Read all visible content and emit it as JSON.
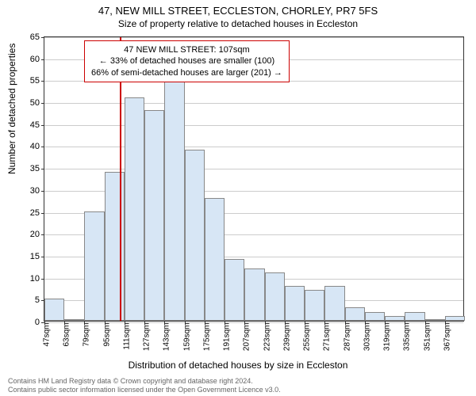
{
  "title_main": "47, NEW MILL STREET, ECCLESTON, CHORLEY, PR7 5FS",
  "title_sub": "Size of property relative to detached houses in Eccleston",
  "y_axis_title": "Number of detached properties",
  "x_axis_title": "Distribution of detached houses by size in Eccleston",
  "chart": {
    "type": "histogram",
    "ylim": [
      0,
      65
    ],
    "ytick_step": 5,
    "x_start": 47,
    "x_step": 16,
    "x_unit": "sqm",
    "bar_color": "#d7e6f5",
    "bar_border": "#888888",
    "grid_color": "#cccccc",
    "axis_color": "#333333",
    "background": "#ffffff",
    "ref_line_value": 107,
    "ref_line_color": "#cc0000",
    "categories": [
      "47sqm",
      "63sqm",
      "79sqm",
      "95sqm",
      "111sqm",
      "127sqm",
      "143sqm",
      "159sqm",
      "175sqm",
      "191sqm",
      "207sqm",
      "223sqm",
      "239sqm",
      "255sqm",
      "271sqm",
      "287sqm",
      "303sqm",
      "319sqm",
      "335sqm",
      "351sqm",
      "367sqm"
    ],
    "values": [
      5,
      0,
      25,
      34,
      51,
      48,
      55,
      39,
      28,
      14,
      12,
      11,
      8,
      7,
      8,
      3,
      2,
      1,
      2,
      0,
      1
    ]
  },
  "annotation": {
    "line1": "47 NEW MILL STREET: 107sqm",
    "line2": "← 33% of detached houses are smaller (100)",
    "line3": "66% of semi-detached houses are larger (201) →",
    "border_color": "#cc0000"
  },
  "footer": {
    "line1": "Contains HM Land Registry data © Crown copyright and database right 2024.",
    "line2": "Contains public sector information licensed under the Open Government Licence v3.0."
  }
}
